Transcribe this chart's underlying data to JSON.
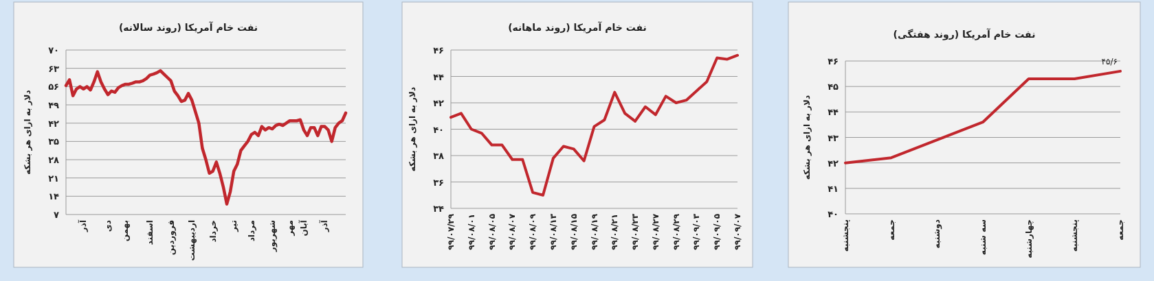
{
  "chart_data": [
    {
      "type": "line",
      "title": "نفت خام آمریکا (روند سالانه)",
      "ylabel": "دلار به ازای هر بشکه",
      "categories": [
        null,
        null,
        null,
        null,
        null,
        "آذر",
        null,
        null,
        null,
        null,
        null,
        null,
        "دی",
        null,
        null,
        null,
        null,
        "بهمن",
        null,
        null,
        null,
        null,
        null,
        null,
        "اسفند",
        null,
        null,
        null,
        null,
        null,
        "فروردین",
        null,
        null,
        null,
        null,
        null,
        "اردیبهشت",
        null,
        null,
        null,
        null,
        null,
        "خرداد",
        null,
        null,
        null,
        null,
        null,
        "تیر",
        null,
        null,
        null,
        null,
        "مرداد",
        null,
        null,
        null,
        null,
        null,
        "شهریور",
        null,
        null,
        null,
        null,
        "مهر",
        null,
        null,
        null,
        "آبان",
        null,
        null,
        null,
        null,
        null,
        "آذر",
        null,
        null,
        null,
        null,
        null,
        null
      ],
      "values": [
        56.4,
        58.6,
        52.5,
        55.1,
        56,
        55.1,
        56,
        54.7,
        57.8,
        61.7,
        57.8,
        55.1,
        52.9,
        54.3,
        53.8,
        55.6,
        56.4,
        56.9,
        56.9,
        57.3,
        57.8,
        57.8,
        58.2,
        59.1,
        60.4,
        60.8,
        61.3,
        62.1,
        60.8,
        59.5,
        58.2,
        54.3,
        52.5,
        50.3,
        50.8,
        53.4,
        50.8,
        46.4,
        42,
        32.4,
        28,
        22.8,
        23.6,
        27.1,
        22.8,
        17.5,
        11,
        15.8,
        23.6,
        26.3,
        31.5,
        33.3,
        35,
        37.6,
        38.5,
        37.2,
        40.7,
        39.4,
        40.3,
        39.8,
        41.1,
        41.6,
        41.1,
        42,
        42.9,
        42.9,
        42.9,
        43.3,
        39.4,
        37.2,
        40.3,
        40.3,
        37.2,
        40.7,
        40.7,
        39.4,
        35,
        40.3,
        42,
        42.9,
        45.9
      ],
      "color": "#c1272d",
      "ylim": [
        7,
        70
      ],
      "yticks": [
        {
          "value": 7,
          "label": "۷"
        },
        {
          "value": 14,
          "label": "۱۴"
        },
        {
          "value": 21,
          "label": "۲۱"
        },
        {
          "value": 28,
          "label": "۲۸"
        },
        {
          "value": 35,
          "label": "۳۵"
        },
        {
          "value": 42,
          "label": "۴۲"
        },
        {
          "value": 49,
          "label": "۴۹"
        },
        {
          "value": 56,
          "label": "۵۶"
        },
        {
          "value": 63,
          "label": "۶۳"
        },
        {
          "value": 70,
          "label": "۷۰"
        }
      ],
      "grid": "y"
    },
    {
      "type": "line",
      "title": "نفت خام آمریکا (روند ماهانه)",
      "ylabel": "دلار به ازای هر بشکه",
      "categories": [
        "۹۹/۰۷/۲۹",
        null,
        "۹۹/۰۸/۰۱",
        null,
        "۹۹/۰۸/۰۵",
        null,
        "۹۹/۰۸/۰۷",
        null,
        "۹۹/۰۸/۰۹",
        null,
        "۹۹/۰۸/۱۳",
        null,
        "۹۹/۰۸/۱۵",
        null,
        "۹۹/۰۸/۱۹",
        null,
        "۹۹/۰۸/۲۱",
        null,
        "۹۹/۰۸/۲۳",
        null,
        "۹۹/۰۸/۲۷",
        null,
        "۹۹/۰۸/۲۹",
        null,
        "۹۹/۰۹/۰۳",
        null,
        "۹۹/۰۹/۰۵",
        null,
        "۹۹/۰۹/۰۷"
      ],
      "values": [
        40.9,
        41.2,
        40.0,
        39.7,
        38.8,
        38.8,
        37.7,
        37.7,
        35.2,
        35.0,
        37.8,
        38.7,
        38.5,
        37.6,
        40.2,
        40.7,
        42.8,
        41.2,
        40.6,
        41.7,
        41.1,
        42.5,
        42.0,
        42.2,
        42.9,
        43.6,
        45.4,
        45.3,
        45.6
      ],
      "color": "#c1272d",
      "ylim": [
        34,
        46
      ],
      "yticks": [
        {
          "value": 34,
          "label": "۳۴"
        },
        {
          "value": 36,
          "label": "۳۶"
        },
        {
          "value": 38,
          "label": "۳۸"
        },
        {
          "value": 40,
          "label": "۴۰"
        },
        {
          "value": 42,
          "label": "۴۲"
        },
        {
          "value": 44,
          "label": "۴۴"
        },
        {
          "value": 46,
          "label": "۴۶"
        }
      ],
      "grid": "y"
    },
    {
      "type": "line",
      "title": "نفت خام آمریکا (روند هفتگی)",
      "ylabel": "دلار به ازای هر بشکه",
      "categories": [
        "پنجشنبه",
        "جمعه",
        "دوشنبه",
        "سه شنبه",
        "چهارشنبه",
        "پنجشنبه",
        "جمعه"
      ],
      "values": [
        42.0,
        42.2,
        42.9,
        43.6,
        45.3,
        45.3,
        45.6
      ],
      "value_labels": [
        null,
        null,
        null,
        null,
        null,
        null,
        "۴۵/۶"
      ],
      "color": "#c1272d",
      "ylim": [
        40,
        46
      ],
      "yticks": [
        {
          "value": 40,
          "label": "۴۰"
        },
        {
          "value": 41,
          "label": "۴۱"
        },
        {
          "value": 42,
          "label": "۴۲"
        },
        {
          "value": 43,
          "label": "۴۳"
        },
        {
          "value": 44,
          "label": "۴۴"
        },
        {
          "value": 45,
          "label": "۴۵"
        },
        {
          "value": 46,
          "label": "۴۶"
        }
      ],
      "grid": "y"
    }
  ]
}
